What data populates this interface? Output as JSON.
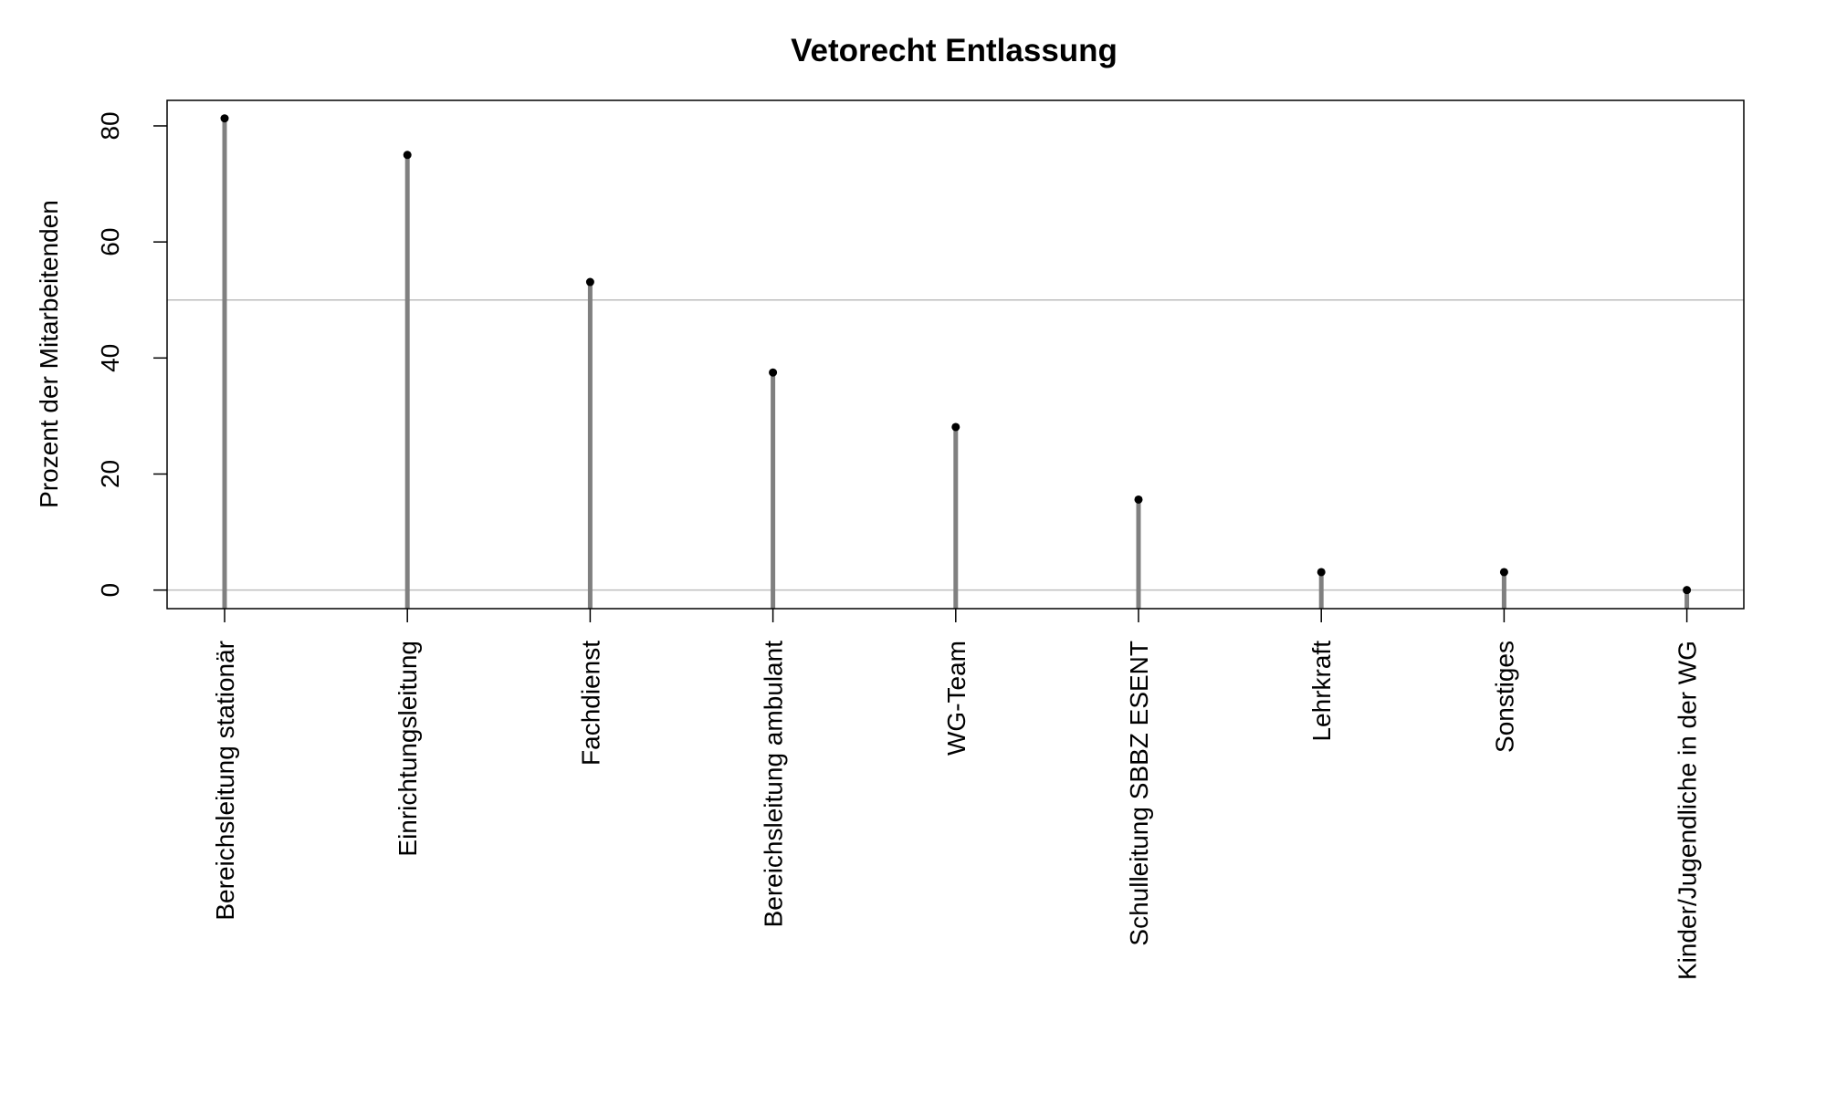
{
  "chart_data": {
    "type": "bar",
    "style": "lollipop",
    "title": "Vetorecht Entlassung",
    "xlabel": "",
    "ylabel": "Prozent der Mitarbeitenden",
    "categories": [
      "Bereichsleitung stationär",
      "Einrichtungsleitung",
      "Fachdienst",
      "Bereichsleitung ambulant",
      "WG-Team",
      "Schulleitung SBBZ ESENT",
      "Lehrkraft",
      "Sonstiges",
      "Kinder/Jugendliche in der WG"
    ],
    "values": [
      81.3,
      75.0,
      53.1,
      37.5,
      28.1,
      15.6,
      3.1,
      3.1,
      0.0
    ],
    "ylim": [
      -3.2,
      84.4
    ],
    "yticks": [
      0,
      20,
      40,
      60,
      80
    ],
    "reference_lines": [
      0,
      50
    ],
    "grid": false,
    "legend": "none",
    "colors": {
      "stem": "#808080",
      "point": "#000000",
      "reference_line": "#bebebe",
      "frame": "#000000"
    }
  }
}
